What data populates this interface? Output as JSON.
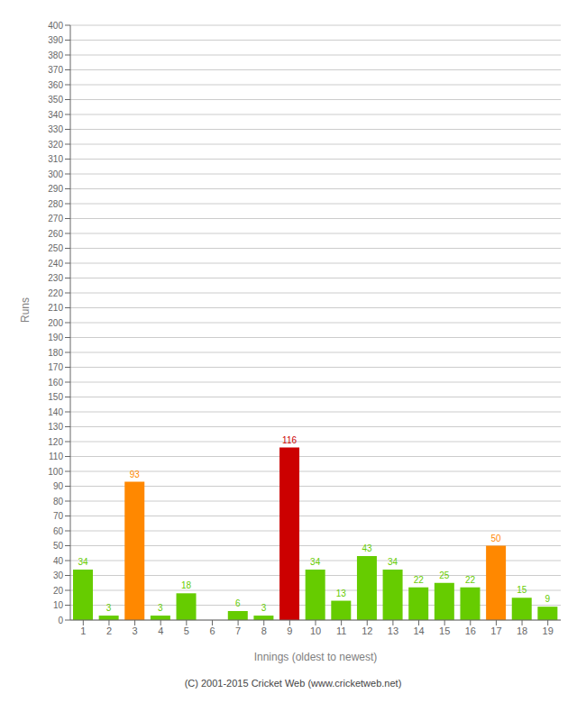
{
  "chart_data": {
    "type": "bar",
    "categories": [
      "1",
      "2",
      "3",
      "4",
      "5",
      "6",
      "7",
      "8",
      "9",
      "10",
      "11",
      "12",
      "13",
      "14",
      "15",
      "16",
      "17",
      "18",
      "19"
    ],
    "values": [
      34,
      3,
      93,
      3,
      18,
      0,
      6,
      3,
      116,
      34,
      13,
      43,
      34,
      22,
      25,
      22,
      50,
      15,
      9
    ],
    "colors": [
      "#66cc00",
      "#66cc00",
      "#ff8800",
      "#66cc00",
      "#66cc00",
      "#66cc00",
      "#66cc00",
      "#66cc00",
      "#cc0000",
      "#66cc00",
      "#66cc00",
      "#66cc00",
      "#66cc00",
      "#66cc00",
      "#66cc00",
      "#66cc00",
      "#ff8800",
      "#66cc00",
      "#66cc00"
    ],
    "x_label": "Innings (oldest to newest)",
    "y_label": "Runs",
    "ylim": [
      0,
      400
    ],
    "yticks": [
      0,
      10,
      20,
      30,
      40,
      50,
      60,
      70,
      80,
      90,
      100,
      110,
      120,
      130,
      140,
      150,
      160,
      170,
      180,
      190,
      200,
      210,
      220,
      230,
      240,
      250,
      260,
      270,
      280,
      290,
      300,
      310,
      320,
      330,
      340,
      350,
      360,
      370,
      380,
      390,
      400
    ],
    "grid": true,
    "data_labels": true,
    "annotations": [
      "(C) 2001-2015 Cricket Web (www.cricketweb.net)"
    ]
  }
}
